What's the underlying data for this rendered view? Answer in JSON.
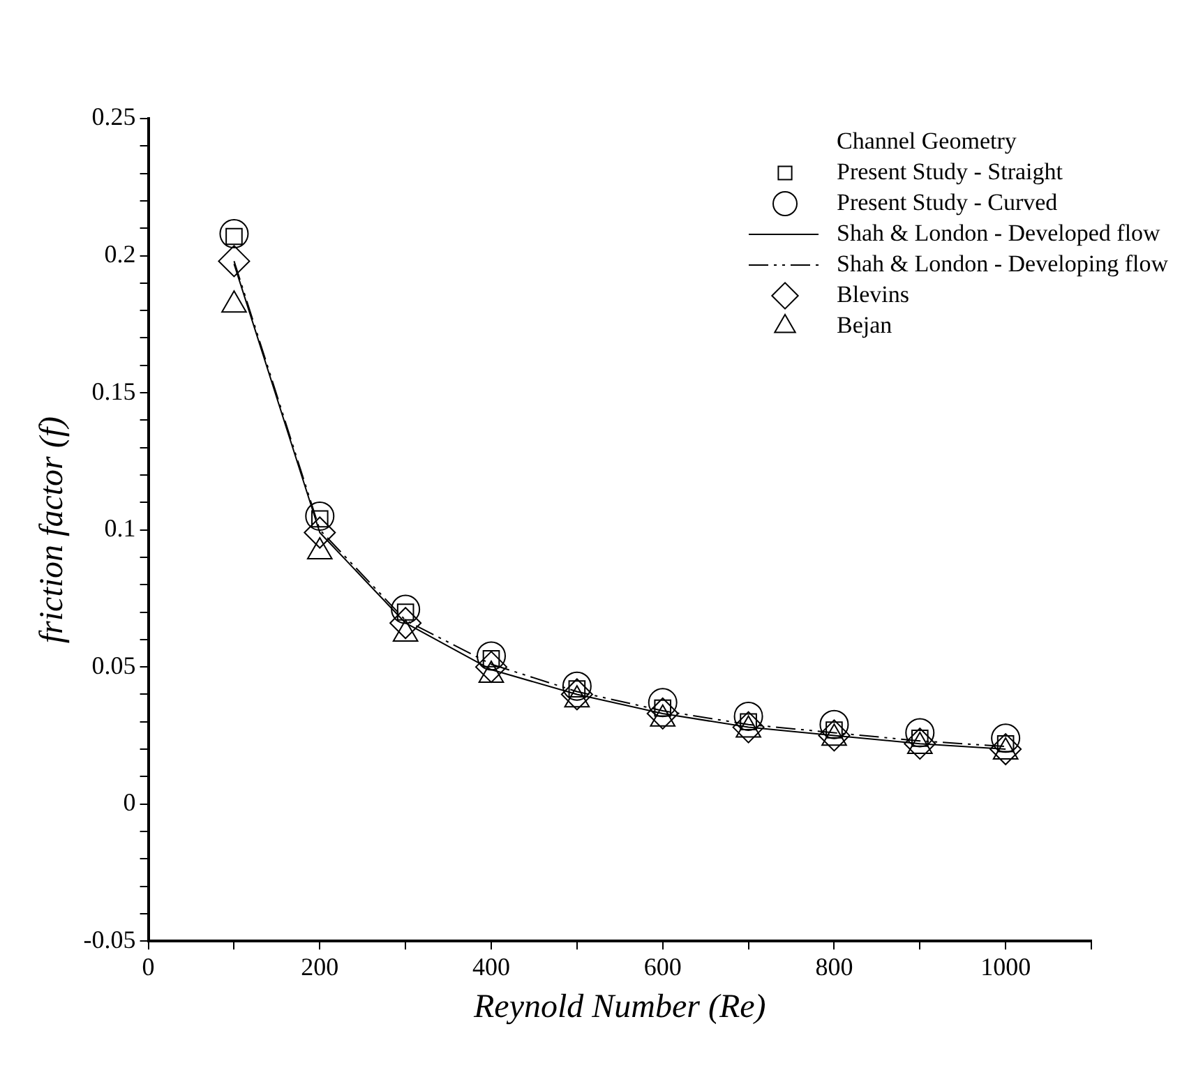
{
  "chart_data": {
    "type": "scatter",
    "xlabel": "Reynold Number (Re)",
    "ylabel": "friction factor (f)",
    "legend_title": "Channel Geometry",
    "legend": "top right",
    "grid": false,
    "x": [
      100,
      200,
      300,
      400,
      500,
      600,
      700,
      800,
      900,
      1000
    ],
    "xlim": [
      0,
      1100
    ],
    "xticks": [
      0,
      {
        "value": 100,
        "label": null
      },
      200,
      {
        "value": 300,
        "label": null
      },
      400,
      {
        "value": 500,
        "label": null
      },
      600,
      {
        "value": 700,
        "label": null
      },
      800,
      {
        "value": 900,
        "label": null
      },
      1000,
      {
        "value": 1100,
        "label": null
      }
    ],
    "ylim": [
      -0.05,
      0.25
    ],
    "yticks": [
      -0.05,
      {
        "value": -0.04,
        "label": null
      },
      {
        "value": -0.03,
        "label": null
      },
      {
        "value": -0.02,
        "label": null
      },
      {
        "value": -0.01,
        "label": null
      },
      0,
      {
        "value": 0.01,
        "label": null
      },
      {
        "value": 0.02,
        "label": null
      },
      {
        "value": 0.03,
        "label": null
      },
      {
        "value": 0.04,
        "label": null
      },
      0.05,
      {
        "value": 0.06,
        "label": null
      },
      {
        "value": 0.07,
        "label": null
      },
      {
        "value": 0.08,
        "label": null
      },
      {
        "value": 0.09,
        "label": null
      },
      0.1,
      {
        "value": 0.11,
        "label": null
      },
      {
        "value": 0.12,
        "label": null
      },
      {
        "value": 0.13,
        "label": null
      },
      {
        "value": 0.14,
        "label": null
      },
      0.15,
      {
        "value": 0.16,
        "label": null
      },
      {
        "value": 0.17,
        "label": null
      },
      {
        "value": 0.18,
        "label": null
      },
      {
        "value": 0.19,
        "label": null
      },
      0.2,
      {
        "value": 0.21,
        "label": null
      },
      {
        "value": 0.22,
        "label": null
      },
      {
        "value": 0.23,
        "label": null
      },
      {
        "value": 0.24,
        "label": null
      },
      0.25
    ],
    "series": [
      {
        "name": "Present Study - Straight",
        "marker": "square",
        "color": "#000000",
        "values": [
          0.207,
          0.104,
          0.07,
          0.053,
          0.042,
          0.035,
          0.03,
          0.027,
          0.024,
          0.022
        ]
      },
      {
        "name": "Present Study - Curved",
        "marker": "circle",
        "color": "#000000",
        "values": [
          0.208,
          0.105,
          0.071,
          0.054,
          0.043,
          0.037,
          0.032,
          0.029,
          0.026,
          0.024
        ]
      },
      {
        "name": "Shah & London - Developed flow",
        "type": "line",
        "marker": "none",
        "line_style": "solid",
        "color": "#000000",
        "values": [
          0.197,
          0.099,
          0.066,
          0.049,
          0.04,
          0.033,
          0.028,
          0.025,
          0.022,
          0.02
        ]
      },
      {
        "name": "Shah & London - Developing flow",
        "type": "line",
        "marker": "none",
        "line_style": "dashed",
        "color": "#000000",
        "values": [
          0.198,
          0.1,
          0.067,
          0.051,
          0.041,
          0.034,
          0.029,
          0.026,
          0.023,
          0.021
        ]
      },
      {
        "name": "Blevins",
        "marker": "diamond",
        "color": "#000000",
        "values": [
          0.198,
          0.099,
          0.066,
          0.05,
          0.04,
          0.033,
          0.028,
          0.025,
          0.022,
          0.02
        ]
      },
      {
        "name": "Bejan",
        "marker": "triangle",
        "color": "#000000",
        "values": [
          0.182,
          0.092,
          0.062,
          0.047,
          0.038,
          0.031,
          0.027,
          0.024,
          0.021,
          0.019
        ]
      }
    ]
  }
}
